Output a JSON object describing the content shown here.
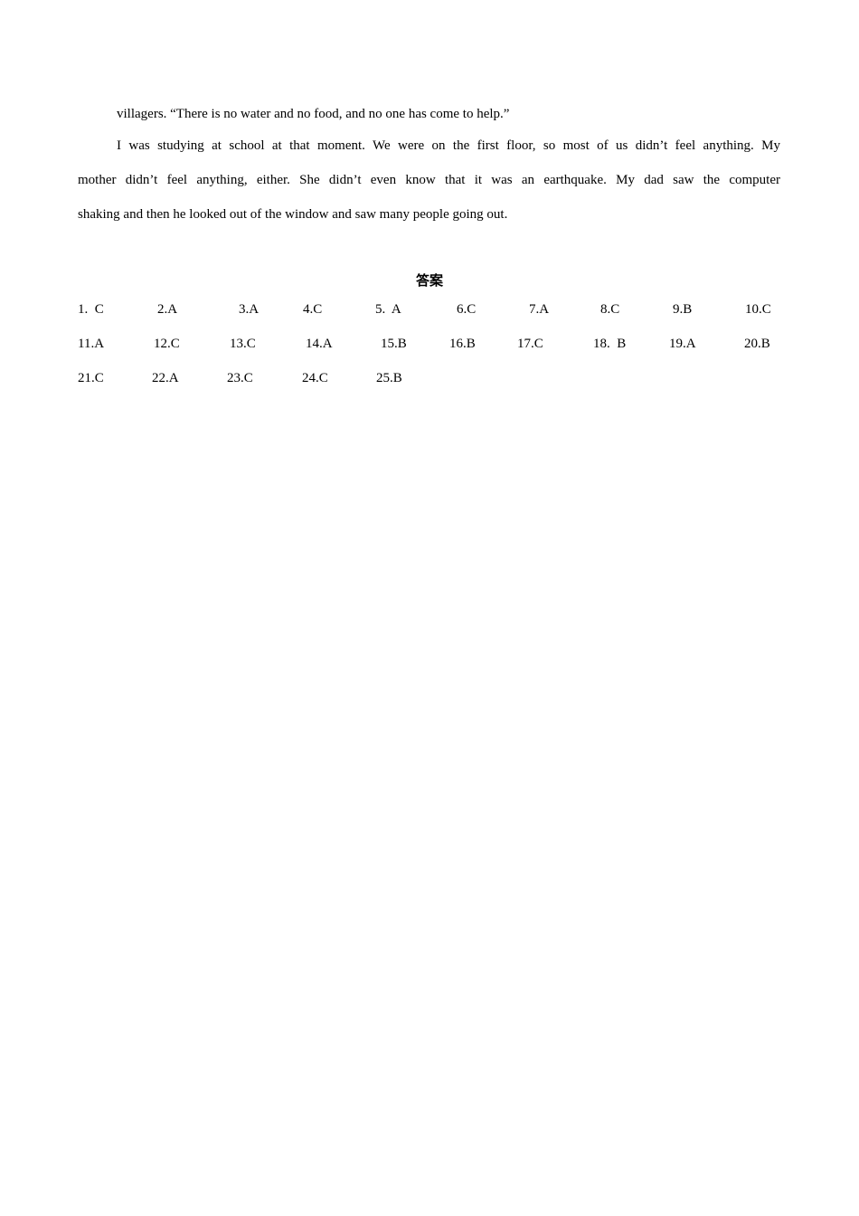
{
  "passage": {
    "line1": "villagers. “There is no water and no food, and no one has come to help.”",
    "line2": "I was studying at school at that moment. We were on the first floor, so most of us didn’t feel anything. My",
    "line3": "mother didn’t feel anything, either. She didn’t even know that it was an earthquake. My dad saw the computer",
    "line4": "shaking and then he looked out of the window and saw many people going out."
  },
  "answers": {
    "title": "答案",
    "rows": [
      [
        "1.  C",
        "2.A",
        "3.A",
        "4.C",
        "5.  A",
        "6.C",
        "7.A",
        "8.C",
        "9.B",
        "10.C"
      ],
      [
        "11.A",
        "12.C",
        "13.C",
        "14.A",
        "15.B",
        "16.B",
        "17.C",
        "18.  B",
        "19.A",
        "20.B"
      ],
      [
        "21.C",
        "22.A",
        "23.C",
        "24.C",
        "25.B"
      ]
    ]
  }
}
